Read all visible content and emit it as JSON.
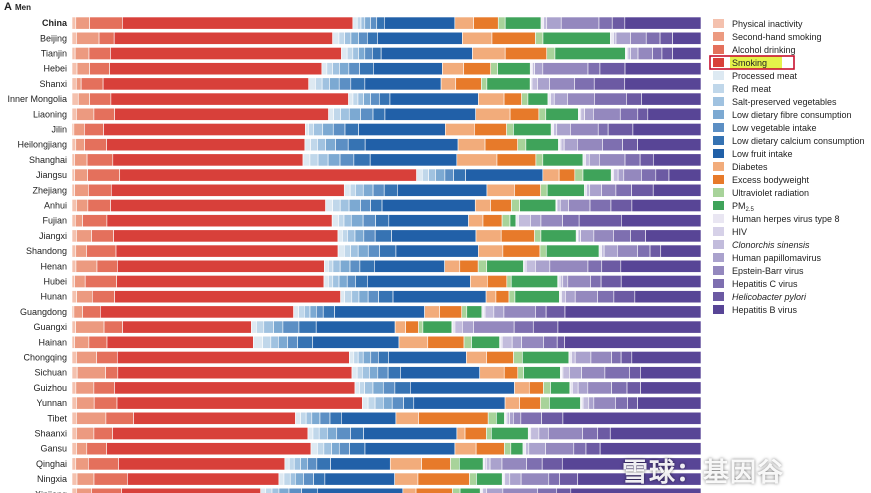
{
  "panel": {
    "letter": "A",
    "subtitle": "Men"
  },
  "watermark": "雪球：基因谷",
  "chart_data": {
    "type": "bar",
    "orientation": "horizontal",
    "stacked": true,
    "normalized": true,
    "xlim": [
      0,
      1
    ],
    "legend_position": "right",
    "highlighted_legend_entry": "Smoking",
    "highlight_color": "#e4f24a",
    "factors": [
      {
        "name": "Physical inactivity",
        "color": "#f4c1ae"
      },
      {
        "name": "Second-hand smoking",
        "color": "#ec9a80"
      },
      {
        "name": "Alcohol drinking",
        "color": "#e4705c"
      },
      {
        "name": "Smoking",
        "color": "#d8403a"
      },
      {
        "name": "Processed meat",
        "color": "#dde9f2"
      },
      {
        "name": "Red meat",
        "color": "#c0d7ea"
      },
      {
        "name": "Salt-preserved vegetables",
        "color": "#a0c2e0"
      },
      {
        "name": "Low dietary fibre consumption",
        "color": "#7ca9d2"
      },
      {
        "name": "Low vegetable intake",
        "color": "#5c8fc4"
      },
      {
        "name": "Low dietary calcium consumption",
        "color": "#3673b3"
      },
      {
        "name": "Low fruit intake",
        "color": "#2160a8"
      },
      {
        "name": "Diabetes",
        "color": "#f2ac7b"
      },
      {
        "name": "Excess bodyweight",
        "color": "#e77a2a"
      },
      {
        "name": "Ultraviolet radiation",
        "color": "#a8d39a"
      },
      {
        "name": "PM2.5",
        "label_main": "PM",
        "label_sub": "2.5",
        "color": "#3fa35a"
      },
      {
        "name": "Human herpes virus type 8",
        "color": "#e9e6f2"
      },
      {
        "name": "HIV",
        "color": "#d6d1e8"
      },
      {
        "name": "Clonorchis sinensis",
        "italic": true,
        "color": "#c2bcdc"
      },
      {
        "name": "Human papillomavirus",
        "color": "#aaa2cd"
      },
      {
        "name": "Epstein-Barr virus",
        "color": "#9488be"
      },
      {
        "name": "Hepatitis C virus",
        "color": "#7e6fb0"
      },
      {
        "name": "Helicobacter pylori",
        "italic": true,
        "color": "#6c5aa3"
      },
      {
        "name": "Hepatitis B virus",
        "color": "#584596"
      }
    ],
    "categories": [
      "China",
      "Beijing",
      "Tianjin",
      "Hebei",
      "Shanxi",
      "Inner Mongolia",
      "Liaoning",
      "Jilin",
      "Heilongjiang",
      "Shanghai",
      "Jiangsu",
      "Zhejiang",
      "Anhui",
      "Fujian",
      "Jiangxi",
      "Shandong",
      "Henan",
      "Hubei",
      "Hunan",
      "Guangdong",
      "Guangxi",
      "Hainan",
      "Chongqing",
      "Sichuan",
      "Guizhou",
      "Yunnan",
      "Tibet",
      "Shaanxi",
      "Gansu",
      "Qinghai",
      "Ningxia",
      "Xinjiang"
    ],
    "bold_categories": [
      "China"
    ],
    "values": [
      [
        0.006,
        0.022,
        0.052,
        0.366,
        0.007,
        0.006,
        0.006,
        0.009,
        0.01,
        0.012,
        0.112,
        0.03,
        0.039,
        0.011,
        0.057,
        0.002,
        0.002,
        0.005,
        0.023,
        0.06,
        0.021,
        0.02,
        0.121
      ],
      [
        0.007,
        0.036,
        0.024,
        0.347,
        0.01,
        0.009,
        0.01,
        0.012,
        0.014,
        0.016,
        0.135,
        0.047,
        0.069,
        0.012,
        0.107,
        0.003,
        0.002,
        0.004,
        0.023,
        0.025,
        0.022,
        0.02,
        0.045
      ],
      [
        0.005,
        0.022,
        0.034,
        0.367,
        0.009,
        0.009,
        0.009,
        0.01,
        0.012,
        0.014,
        0.145,
        0.052,
        0.066,
        0.013,
        0.112,
        0.002,
        0.002,
        0.004,
        0.012,
        0.023,
        0.015,
        0.017,
        0.045
      ],
      [
        0.008,
        0.02,
        0.032,
        0.338,
        0.008,
        0.009,
        0.011,
        0.015,
        0.017,
        0.022,
        0.11,
        0.034,
        0.043,
        0.011,
        0.052,
        0.002,
        0.002,
        0.003,
        0.013,
        0.072,
        0.019,
        0.04,
        0.121
      ],
      [
        0.007,
        0.008,
        0.036,
        0.337,
        0.011,
        0.011,
        0.012,
        0.016,
        0.019,
        0.023,
        0.125,
        0.024,
        0.042,
        0.009,
        0.071,
        0.001,
        0.002,
        0.009,
        0.02,
        0.041,
        0.032,
        0.05,
        0.125
      ],
      [
        0.01,
        0.018,
        0.034,
        0.379,
        0.007,
        0.008,
        0.009,
        0.011,
        0.014,
        0.017,
        0.141,
        0.041,
        0.028,
        0.01,
        0.032,
        0.002,
        0.002,
        0.006,
        0.021,
        0.043,
        0.051,
        0.024,
        0.095
      ],
      [
        0.007,
        0.028,
        0.033,
        0.342,
        0.008,
        0.011,
        0.014,
        0.018,
        0.02,
        0.019,
        0.145,
        0.055,
        0.046,
        0.011,
        0.052,
        0.002,
        0.002,
        0.006,
        0.014,
        0.043,
        0.028,
        0.016,
        0.085
      ],
      [
        0.003,
        0.017,
        0.031,
        0.326,
        0.005,
        0.008,
        0.015,
        0.017,
        0.019,
        0.022,
        0.14,
        0.047,
        0.052,
        0.011,
        0.061,
        0.002,
        0.002,
        0.005,
        0.022,
        0.045,
        0.016,
        0.04,
        0.11
      ],
      [
        0.006,
        0.014,
        0.035,
        0.316,
        0.009,
        0.011,
        0.013,
        0.016,
        0.02,
        0.027,
        0.148,
        0.043,
        0.052,
        0.013,
        0.052,
        0.002,
        0.002,
        0.005,
        0.021,
        0.04,
        0.032,
        0.024,
        0.101
      ],
      [
        0.004,
        0.02,
        0.041,
        0.303,
        0.011,
        0.013,
        0.016,
        0.019,
        0.022,
        0.026,
        0.138,
        0.064,
        0.062,
        0.011,
        0.064,
        0.002,
        0.002,
        0.006,
        0.016,
        0.041,
        0.024,
        0.021,
        0.076
      ],
      [
        0.004,
        0.021,
        0.051,
        0.473,
        0.009,
        0.01,
        0.011,
        0.015,
        0.014,
        0.019,
        0.123,
        0.026,
        0.025,
        0.013,
        0.045,
        0.002,
        0.002,
        0.007,
        0.009,
        0.028,
        0.023,
        0.021,
        0.051
      ],
      [
        0.004,
        0.021,
        0.035,
        0.356,
        0.009,
        0.008,
        0.012,
        0.015,
        0.017,
        0.02,
        0.137,
        0.042,
        0.04,
        0.01,
        0.057,
        0.001,
        0.002,
        0.005,
        0.018,
        0.022,
        0.024,
        0.033,
        0.073
      ],
      [
        0.007,
        0.018,
        0.036,
        0.339,
        0.011,
        0.012,
        0.014,
        0.018,
        0.016,
        0.018,
        0.147,
        0.024,
        0.033,
        0.013,
        0.057,
        0.001,
        0.001,
        0.005,
        0.013,
        0.034,
        0.033,
        0.033,
        0.109
      ],
      [
        0.005,
        0.011,
        0.037,
        0.342,
        0.01,
        0.008,
        0.011,
        0.018,
        0.019,
        0.02,
        0.121,
        0.022,
        0.029,
        0.012,
        0.009,
        0.002,
        0.002,
        0.018,
        0.016,
        0.033,
        0.025,
        0.064,
        0.121
      ],
      [
        0.007,
        0.024,
        0.035,
        0.356,
        0.007,
        0.008,
        0.012,
        0.014,
        0.018,
        0.026,
        0.134,
        0.04,
        0.053,
        0.01,
        0.056,
        0.002,
        0.001,
        0.004,
        0.021,
        0.031,
        0.027,
        0.024,
        0.088
      ],
      [
        0.006,
        0.017,
        0.047,
        0.353,
        0.01,
        0.01,
        0.012,
        0.016,
        0.018,
        0.026,
        0.131,
        0.039,
        0.059,
        0.01,
        0.084,
        0.002,
        0.002,
        0.004,
        0.021,
        0.032,
        0.02,
        0.017,
        0.064
      ],
      [
        0.006,
        0.032,
        0.031,
        0.315,
        0.006,
        0.007,
        0.011,
        0.015,
        0.015,
        0.022,
        0.107,
        0.023,
        0.028,
        0.013,
        0.056,
        0.001,
        0.003,
        0.014,
        0.022,
        0.058,
        0.021,
        0.029,
        0.122
      ],
      [
        0.004,
        0.017,
        0.05,
        0.33,
        0.007,
        0.007,
        0.01,
        0.013,
        0.013,
        0.019,
        0.164,
        0.027,
        0.031,
        0.007,
        0.074,
        0.002,
        0.002,
        0.004,
        0.008,
        0.036,
        0.017,
        0.032,
        0.127
      ],
      [
        0.007,
        0.024,
        0.034,
        0.345,
        0.006,
        0.011,
        0.011,
        0.014,
        0.016,
        0.022,
        0.142,
        0.015,
        0.02,
        0.009,
        0.068,
        0.002,
        0.001,
        0.006,
        0.015,
        0.034,
        0.025,
        0.032,
        0.101
      ],
      [
        0.003,
        0.014,
        0.028,
        0.307,
        0.008,
        0.009,
        0.009,
        0.01,
        0.011,
        0.018,
        0.143,
        0.024,
        0.035,
        0.008,
        0.024,
        0.003,
        0.002,
        0.014,
        0.016,
        0.05,
        0.017,
        0.03,
        0.216
      ],
      [
        0.006,
        0.046,
        0.03,
        0.209,
        0.008,
        0.012,
        0.016,
        0.015,
        0.026,
        0.028,
        0.128,
        0.017,
        0.021,
        0.007,
        0.047,
        0.002,
        0.003,
        0.012,
        0.018,
        0.066,
        0.031,
        0.04,
        0.232
      ],
      [
        0.004,
        0.023,
        0.029,
        0.234,
        0.015,
        0.013,
        0.012,
        0.015,
        0.016,
        0.024,
        0.138,
        0.046,
        0.058,
        0.012,
        0.045,
        0.002,
        0.002,
        0.016,
        0.015,
        0.035,
        0.022,
        0.012,
        0.218
      ],
      [
        0.007,
        0.032,
        0.033,
        0.369,
        0.007,
        0.007,
        0.008,
        0.012,
        0.012,
        0.016,
        0.124,
        0.032,
        0.043,
        0.014,
        0.074,
        0.002,
        0.002,
        0.006,
        0.025,
        0.033,
        0.015,
        0.017,
        0.11
      ],
      [
        0.008,
        0.044,
        0.019,
        0.363,
        0.008,
        0.008,
        0.011,
        0.013,
        0.016,
        0.019,
        0.123,
        0.038,
        0.021,
        0.009,
        0.057,
        0.002,
        0.002,
        0.01,
        0.019,
        0.036,
        0.038,
        0.017,
        0.094
      ],
      [
        0.006,
        0.028,
        0.032,
        0.374,
        0.007,
        0.008,
        0.013,
        0.016,
        0.018,
        0.024,
        0.162,
        0.023,
        0.022,
        0.011,
        0.03,
        0.002,
        0.002,
        0.009,
        0.015,
        0.037,
        0.024,
        0.021,
        0.094
      ],
      [
        0.007,
        0.028,
        0.036,
        0.387,
        0.009,
        0.011,
        0.013,
        0.014,
        0.018,
        0.016,
        0.144,
        0.023,
        0.033,
        0.014,
        0.049,
        0.002,
        0.002,
        0.009,
        0.008,
        0.034,
        0.019,
        0.016,
        0.1
      ],
      [
        0.007,
        0.047,
        0.044,
        0.258,
        0.008,
        0.009,
        0.009,
        0.013,
        0.016,
        0.018,
        0.087,
        0.036,
        0.111,
        0.013,
        0.013,
        0.002,
        0.002,
        0.004,
        0.006,
        0.012,
        0.033,
        0.034,
        0.22
      ],
      [
        0.007,
        0.028,
        0.03,
        0.312,
        0.008,
        0.01,
        0.013,
        0.015,
        0.022,
        0.021,
        0.149,
        0.013,
        0.034,
        0.008,
        0.059,
        0.002,
        0.002,
        0.013,
        0.015,
        0.055,
        0.024,
        0.02,
        0.145
      ],
      [
        0.007,
        0.016,
        0.031,
        0.318,
        0.01,
        0.01,
        0.012,
        0.012,
        0.016,
        0.024,
        0.14,
        0.033,
        0.044,
        0.01,
        0.019,
        0.002,
        0.002,
        0.005,
        0.026,
        0.044,
        0.019,
        0.022,
        0.157
      ],
      [
        0.006,
        0.02,
        0.048,
        0.265,
        0.007,
        0.008,
        0.01,
        0.011,
        0.015,
        0.022,
        0.095,
        0.05,
        0.046,
        0.014,
        0.038,
        0.002,
        0.003,
        0.006,
        0.019,
        0.039,
        0.025,
        0.032,
        0.221
      ],
      [
        0.008,
        0.027,
        0.053,
        0.241,
        0.008,
        0.01,
        0.008,
        0.013,
        0.016,
        0.018,
        0.111,
        0.037,
        0.082,
        0.011,
        0.041,
        0.002,
        0.002,
        0.008,
        0.018,
        0.044,
        0.017,
        0.029,
        0.196
      ],
      [
        0.007,
        0.024,
        0.048,
        0.221,
        0.008,
        0.01,
        0.011,
        0.016,
        0.02,
        0.025,
        0.136,
        0.021,
        0.058,
        0.012,
        0.032,
        0.002,
        0.002,
        0.006,
        0.026,
        0.055,
        0.03,
        0.023,
        0.207
      ]
    ]
  }
}
